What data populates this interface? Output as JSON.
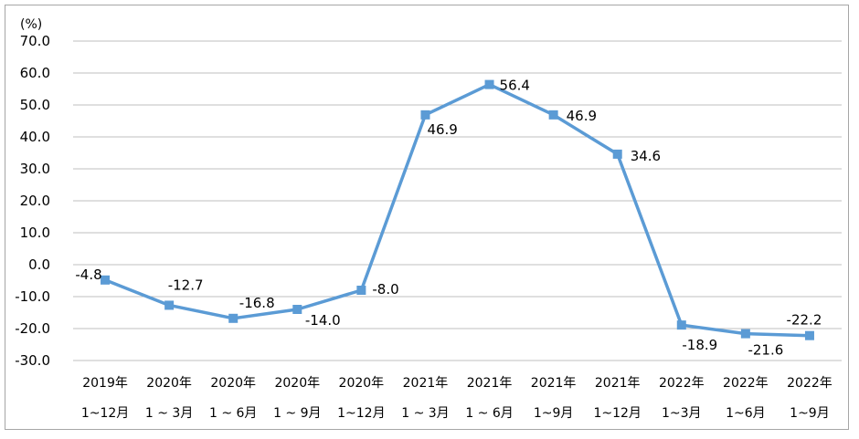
{
  "chart_data": {
    "type": "line",
    "unit_label": "(%)",
    "ylim": [
      -30,
      70
    ],
    "yticks": [
      "70.0",
      "60.0",
      "50.0",
      "40.0",
      "30.0",
      "20.0",
      "10.0",
      "0.0",
      "-10.0",
      "-20.0",
      "-30.0"
    ],
    "ytick_values": [
      70,
      60,
      50,
      40,
      30,
      20,
      10,
      0,
      -10,
      -20,
      -30
    ],
    "grid": true,
    "legend": "none",
    "categories": [
      [
        "2019年",
        "1~12月"
      ],
      [
        "2020年",
        "1 ~ 3月"
      ],
      [
        "2020年",
        "1 ~ 6月"
      ],
      [
        "2020年",
        "1 ~ 9月"
      ],
      [
        "2020年",
        "1~12月"
      ],
      [
        "2021年",
        "1 ~ 3月"
      ],
      [
        "2021年",
        "1 ~ 6月"
      ],
      [
        "2021年",
        "1~9月"
      ],
      [
        "2021年",
        "1~12月"
      ],
      [
        "2022年",
        "1~3月"
      ],
      [
        "2022年",
        "1~6月"
      ],
      [
        "2022年",
        "1~9月"
      ]
    ],
    "series": [
      {
        "values": [
          -4.8,
          -12.7,
          -16.8,
          -14.0,
          -8.0,
          46.9,
          56.4,
          46.9,
          34.6,
          -18.9,
          -21.6,
          -22.2
        ],
        "labels": [
          "-4.8",
          "-12.7",
          "-16.8",
          "-14.0",
          "-8.0",
          "46.9",
          "56.4",
          "46.9",
          "34.6",
          "-18.9",
          "-21.6",
          "-22.2"
        ],
        "color": "#5b9bd5"
      }
    ]
  }
}
